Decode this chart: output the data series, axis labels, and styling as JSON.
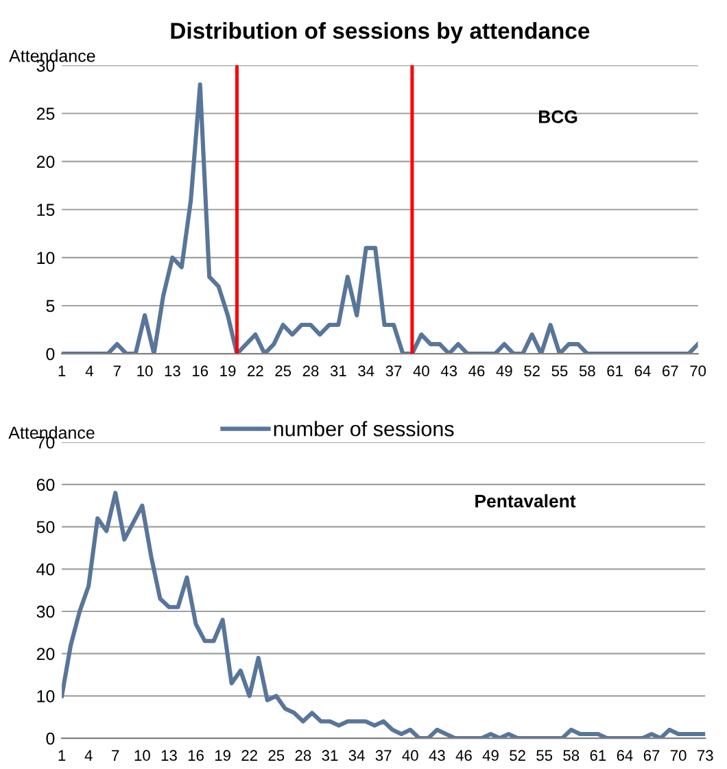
{
  "chart_data": [
    {
      "type": "line",
      "title": "Distribution of sessions by attendance",
      "ylabel": "Attendance",
      "annotations": [
        "BCG"
      ],
      "x": [
        1,
        2,
        3,
        4,
        5,
        6,
        7,
        8,
        9,
        10,
        11,
        12,
        13,
        14,
        15,
        16,
        17,
        18,
        19,
        20,
        21,
        22,
        23,
        24,
        25,
        26,
        27,
        28,
        29,
        30,
        31,
        32,
        33,
        34,
        35,
        36,
        37,
        38,
        39,
        40,
        41,
        42,
        43,
        44,
        45,
        46,
        47,
        48,
        49,
        50,
        51,
        52,
        53,
        54,
        55,
        56,
        57,
        58,
        59,
        60,
        61,
        62,
        63,
        64,
        65,
        66,
        67,
        68,
        69,
        70
      ],
      "series": [
        {
          "color": "#58759a",
          "values": [
            0,
            0,
            0,
            0,
            0,
            0,
            1,
            0,
            0,
            4,
            0,
            6,
            10,
            9,
            16,
            28,
            8,
            7,
            4,
            0,
            1,
            2,
            0,
            1,
            3,
            2,
            3,
            3,
            2,
            3,
            3,
            8,
            4,
            11,
            11,
            3,
            3,
            0,
            0,
            2,
            1,
            1,
            0,
            1,
            0,
            0,
            0,
            0,
            1,
            0,
            0,
            2,
            0,
            3,
            0,
            1,
            1,
            0,
            0,
            0,
            0,
            0,
            0,
            0,
            0,
            0,
            0,
            0,
            0,
            1
          ]
        }
      ],
      "xlim": [
        1,
        70
      ],
      "xticks": [
        1,
        4,
        7,
        10,
        13,
        16,
        19,
        22,
        25,
        28,
        31,
        34,
        37,
        40,
        43,
        46,
        49,
        52,
        55,
        58,
        61,
        64,
        67,
        70
      ],
      "ylim": [
        0,
        30
      ],
      "yticks": [
        0,
        5,
        10,
        15,
        20,
        25,
        30
      ],
      "grid": "y",
      "legend": false,
      "ref_lines": [
        {
          "axis": "x",
          "value": 20,
          "color": "#ff0000"
        },
        {
          "axis": "x",
          "value": 39,
          "color": "#ff0000"
        }
      ]
    },
    {
      "type": "line",
      "ylabel": "Attendance",
      "annotations": [
        "Pentavalent"
      ],
      "x": [
        1,
        2,
        3,
        4,
        5,
        6,
        7,
        8,
        9,
        10,
        11,
        12,
        13,
        14,
        15,
        16,
        17,
        18,
        19,
        20,
        21,
        22,
        23,
        24,
        25,
        26,
        27,
        28,
        29,
        30,
        31,
        32,
        33,
        34,
        35,
        36,
        37,
        38,
        39,
        40,
        41,
        42,
        43,
        44,
        45,
        46,
        47,
        48,
        49,
        50,
        51,
        52,
        53,
        54,
        55,
        56,
        57,
        58,
        59,
        60,
        61,
        62,
        63,
        64,
        65,
        66,
        67,
        68,
        69,
        70,
        71,
        72,
        73
      ],
      "series": [
        {
          "name": "number of sessions",
          "color": "#58759a",
          "values": [
            10,
            22,
            30,
            36,
            52,
            49,
            58,
            47,
            51,
            55,
            43,
            33,
            31,
            31,
            38,
            27,
            23,
            23,
            28,
            13,
            16,
            10,
            19,
            9,
            10,
            7,
            6,
            4,
            6,
            4,
            4,
            3,
            4,
            4,
            4,
            3,
            4,
            2,
            1,
            2,
            0,
            0,
            2,
            1,
            0,
            0,
            0,
            0,
            1,
            0,
            1,
            0,
            0,
            0,
            0,
            0,
            0,
            2,
            1,
            1,
            1,
            0,
            0,
            0,
            0,
            0,
            1,
            0,
            2,
            1,
            1,
            1,
            1
          ]
        }
      ],
      "xlim": [
        1,
        73
      ],
      "xticks": [
        1,
        4,
        7,
        10,
        13,
        16,
        19,
        22,
        25,
        28,
        31,
        34,
        37,
        40,
        43,
        46,
        49,
        52,
        55,
        58,
        61,
        64,
        67,
        70,
        73
      ],
      "ylim": [
        0,
        70
      ],
      "yticks": [
        0,
        10,
        20,
        30,
        40,
        50,
        60,
        70
      ],
      "grid": "y",
      "legend": "top"
    }
  ]
}
